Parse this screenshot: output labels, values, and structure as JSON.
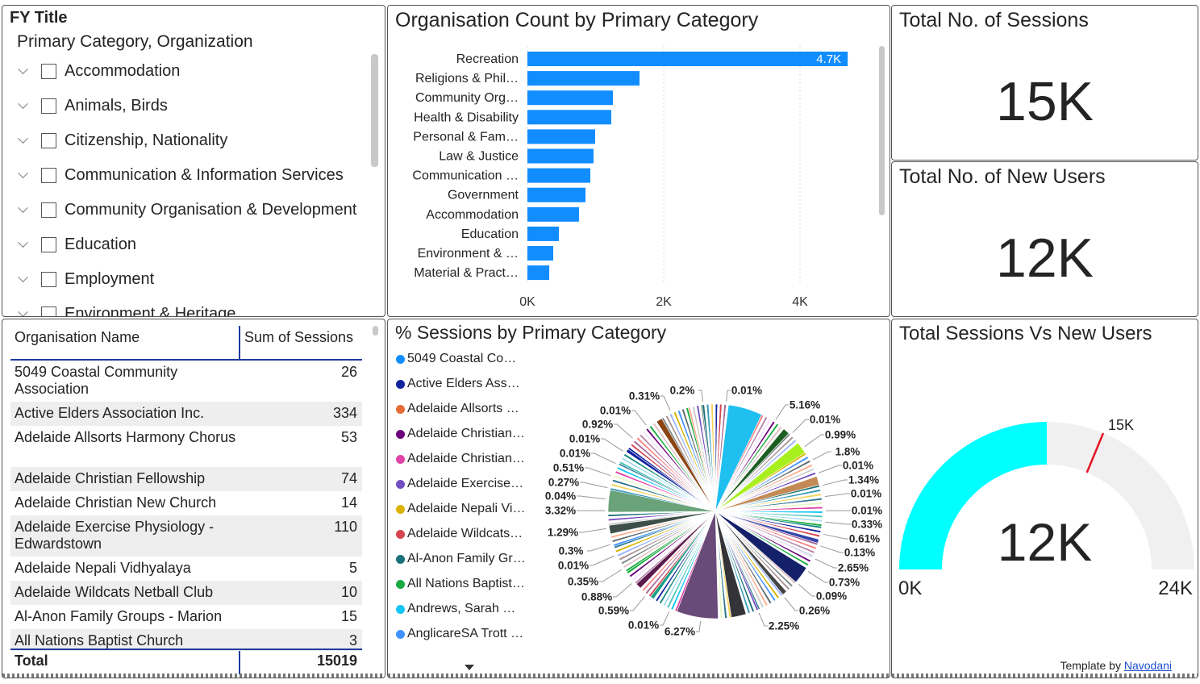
{
  "slicer": {
    "title": "FY Title",
    "header": "Primary Category, Organization",
    "items": [
      "Accommodation",
      "Animals, Birds",
      "Citizenship, Nationality",
      "Communication & Information Services",
      "Community Organisation & Development",
      "Education",
      "Employment",
      "Environment & Heritage"
    ]
  },
  "bar_chart": {
    "title": "Organisation Count by Primary Category",
    "color": "#118dff"
  },
  "kpi_sessions": {
    "title": "Total No. of Sessions",
    "value": "15K"
  },
  "kpi_new_users": {
    "title": "Total No. of New Users",
    "value": "12K"
  },
  "table": {
    "columns": [
      "Organisation Name",
      "Sum of Sessions"
    ],
    "rows": [
      [
        "5049 Coastal Community Association",
        "26"
      ],
      [
        "Active Elders Association Inc.",
        "334"
      ],
      [
        "Adelaide Allsorts Harmony Chorus",
        "53"
      ],
      [
        "Adelaide Christian Fellowship",
        "74"
      ],
      [
        "Adelaide Christian New Church",
        "14"
      ],
      [
        "Adelaide Exercise Physiology - Edwardstown",
        "110"
      ],
      [
        "Adelaide Nepali Vidhyalaya",
        "5"
      ],
      [
        "Adelaide Wildcats Netball Club",
        "10"
      ],
      [
        "Al-Anon Family Groups - Marion",
        "15"
      ],
      [
        "All Nations Baptist Church",
        "3"
      ]
    ],
    "total_label": "Total",
    "total_value": "15019"
  },
  "pie_legend": [
    {
      "label": "5049 Coastal Co…",
      "color": "#118dff"
    },
    {
      "label": "Active Elders Ass…",
      "color": "#12239e"
    },
    {
      "label": "Adelaide Allsorts …",
      "color": "#e66c37"
    },
    {
      "label": "Adelaide Christian…",
      "color": "#6b007b"
    },
    {
      "label": "Adelaide Christian…",
      "color": "#e044a7"
    },
    {
      "label": "Adelaide Exercise…",
      "color": "#744ec2"
    },
    {
      "label": "Adelaide Nepali Vi…",
      "color": "#d9b300"
    },
    {
      "label": "Adelaide Wildcats…",
      "color": "#d64550"
    },
    {
      "label": "Al-Anon Family Gr…",
      "color": "#197278"
    },
    {
      "label": "All Nations Baptist…",
      "color": "#1aab40"
    },
    {
      "label": "Andrews, Sarah  …",
      "color": "#15c6f4"
    },
    {
      "label": "AnglicareSA Trott …",
      "color": "#4092ff"
    }
  ],
  "gauge": {
    "title": "Total Sessions Vs New Users",
    "value_label": "12K",
    "min_label": "0K",
    "max_label": "24K",
    "target_label": "15K",
    "fill_color": "#00ffff",
    "track_color": "#f0f0f0",
    "target_color": "#e81123",
    "footer_text": "Template by",
    "footer_link": "Navodani"
  },
  "chart_data": [
    {
      "type": "bar",
      "title": "Organisation Count by Primary Category",
      "orientation": "horizontal",
      "categories": [
        "Recreation",
        "Religions & Phil…",
        "Community Org…",
        "Health & Disability",
        "Personal & Fam…",
        "Law & Justice",
        "Communication …",
        "Government",
        "Accommodation",
        "Education",
        "Environment & …",
        "Material & Pract…"
      ],
      "values": [
        4700,
        1645,
        1255,
        1230,
        994,
        970,
        923,
        852,
        757,
        462,
        379,
        320
      ],
      "data_label": "4.7K",
      "xticks": [
        "0K",
        "2K",
        "4K"
      ],
      "xlim": [
        0,
        4800
      ],
      "grid": true
    },
    {
      "type": "pie",
      "title": "% Sessions by Primary Category",
      "labeled_slices_clockwise": [
        "0.01%",
        "5.16%",
        "0.01%",
        "0.99%",
        "1.8%",
        "0.01%",
        "1.34%",
        "0.01%",
        "0.01%",
        "0.33%",
        "0.61%",
        "0.13%",
        "2.65%",
        "0.73%",
        "0.09%",
        "0.26%",
        "2.25%",
        "6.27%",
        "0.01%",
        "0.59%",
        "0.88%",
        "0.35%",
        "0.01%",
        "0.3%",
        "1.29%",
        "3.32%",
        "0.04%",
        "0.27%",
        "0.51%",
        "0.01%",
        "0.01%",
        "0.92%",
        "0.01%",
        "0.31%",
        "0.2%"
      ]
    },
    {
      "type": "gauge",
      "value": 12000,
      "min": 0,
      "max": 24000,
      "target": 15000
    }
  ]
}
